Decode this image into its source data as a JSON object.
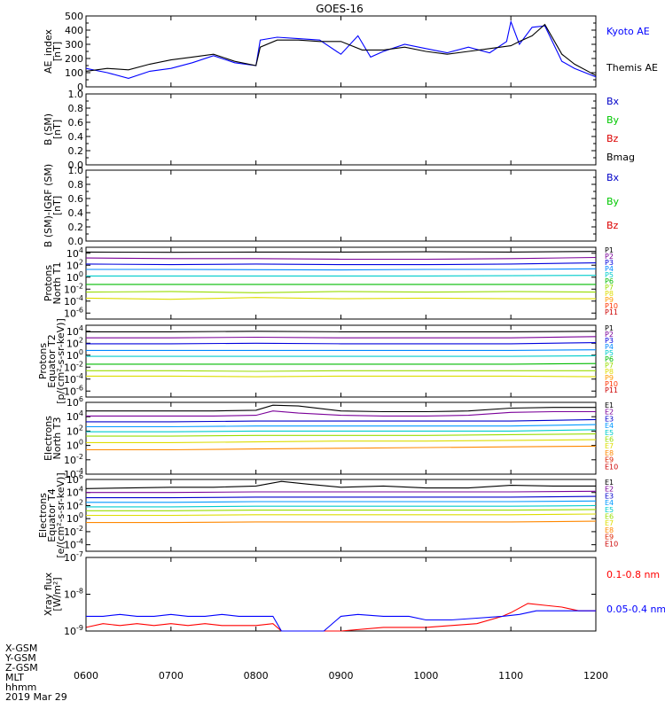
{
  "title": "GOES-16",
  "x_ticks": [
    "0600",
    "0700",
    "0800",
    "0900",
    "1000",
    "1100",
    "1200"
  ],
  "footer": {
    "labels": [
      "X-GSM",
      "Y-GSM",
      "Z-GSM",
      "MLT",
      "hhmm"
    ],
    "date": "2019 Mar 29"
  },
  "colors": {
    "kyoto": "#0000ff",
    "themis": "#000000",
    "bx": "#0000c8",
    "by": "#00c800",
    "bz": "#dc0000",
    "bmag": "#000000",
    "xray_long": "#ff0000",
    "xray_short": "#0000ff"
  },
  "chart_data": [
    {
      "type": "line",
      "panel": "ae",
      "ylabel": [
        "AE_index",
        "[nT]"
      ],
      "ylim": [
        0,
        500
      ],
      "yticks": [
        "0",
        "100",
        "200",
        "300",
        "400",
        "500"
      ],
      "x_range": [
        "0600",
        "1200"
      ],
      "series": [
        {
          "name": "Kyoto AE",
          "color": "#0000ff",
          "x": [
            6.0,
            6.25,
            6.5,
            6.75,
            7.0,
            7.25,
            7.5,
            7.75,
            8.0,
            8.05,
            8.25,
            8.5,
            8.75,
            9.0,
            9.2,
            9.35,
            9.5,
            9.75,
            10.0,
            10.25,
            10.5,
            10.75,
            10.95,
            11.0,
            11.1,
            11.25,
            11.4,
            11.6,
            11.75,
            12.0
          ],
          "values": [
            130,
            100,
            60,
            110,
            130,
            170,
            220,
            170,
            150,
            330,
            350,
            340,
            330,
            230,
            360,
            210,
            250,
            300,
            270,
            240,
            280,
            240,
            320,
            460,
            300,
            420,
            430,
            180,
            130,
            70
          ]
        },
        {
          "name": "Themis AE",
          "color": "#000000",
          "x": [
            6.0,
            6.25,
            6.5,
            6.75,
            7.0,
            7.25,
            7.5,
            7.75,
            8.0,
            8.05,
            8.25,
            8.5,
            8.75,
            9.0,
            9.25,
            9.5,
            9.75,
            10.0,
            10.25,
            10.5,
            10.75,
            11.0,
            11.1,
            11.25,
            11.4,
            11.6,
            11.75,
            12.0
          ],
          "values": [
            110,
            130,
            120,
            160,
            190,
            210,
            230,
            180,
            150,
            280,
            330,
            330,
            320,
            320,
            260,
            260,
            280,
            250,
            230,
            250,
            270,
            290,
            320,
            360,
            440,
            230,
            160,
            80
          ]
        }
      ]
    },
    {
      "type": "line",
      "panel": "b_sm",
      "ylabel": [
        "B (SM)",
        "[nT]"
      ],
      "ylim": [
        0,
        1
      ],
      "yticks": [
        "0.0",
        "0.2",
        "0.4",
        "0.6",
        "0.8",
        "1.0"
      ],
      "legend": [
        "Bx",
        "By",
        "Bz",
        "Bmag"
      ],
      "series": []
    },
    {
      "type": "line",
      "panel": "b_sm_igrf",
      "ylabel": [
        "B (SM)-IGRF (SM)",
        "[nT]"
      ],
      "ylim": [
        0,
        1
      ],
      "yticks": [
        "0.0",
        "0.2",
        "0.4",
        "0.6",
        "0.8",
        "1.0"
      ],
      "legend": [
        "Bx",
        "By",
        "Bz"
      ],
      "series": []
    },
    {
      "type": "line",
      "panel": "protons_t1",
      "ylabel": [
        "Protons",
        "North T1"
      ],
      "log": true,
      "ylim": [
        -7,
        5
      ],
      "yticks": [
        {
          "exp": "4",
          "v": 4
        },
        {
          "exp": "2",
          "v": 2
        },
        {
          "exp": "0",
          "v": 0
        },
        {
          "exp": "-2",
          "v": -2
        },
        {
          "exp": "-4",
          "v": -4
        },
        {
          "exp": "-6",
          "v": -6
        }
      ],
      "legend": [
        "P1",
        "P2",
        "P3",
        "P4",
        "P5",
        "P6",
        "P7",
        "P8",
        "P9",
        "P10",
        "P11"
      ],
      "series": [
        {
          "name": "P1",
          "values": [
            4.2,
            4.15,
            4.2,
            4.2,
            4.25,
            4.2,
            4.3
          ]
        },
        {
          "name": "P2",
          "values": [
            3.2,
            3.1,
            3.1,
            3.0,
            3.0,
            3.1,
            3.3
          ]
        },
        {
          "name": "P3",
          "values": [
            2.2,
            2.1,
            2.2,
            2.1,
            2.1,
            2.2,
            2.4
          ]
        },
        {
          "name": "P4",
          "values": [
            1.3,
            1.3,
            1.25,
            1.2,
            1.3,
            1.3,
            1.4
          ]
        },
        {
          "name": "P5",
          "values": [
            0.2,
            0.2,
            0.2,
            0.2,
            0.2,
            0.25,
            0.3
          ]
        },
        {
          "name": "P6",
          "values": [
            -1.2,
            -1.2,
            -1.2,
            -1.2,
            -1.2,
            -1.2,
            -1.2
          ]
        },
        {
          "name": "P7",
          "values": [
            -2.5,
            -2.4,
            -2.6,
            -2.4,
            -2.5,
            -2.4,
            -2.5
          ]
        },
        {
          "name": "P8",
          "values": [
            -3.5,
            -3.7,
            -3.4,
            -3.6,
            -3.5,
            -3.6,
            -3.6
          ]
        }
      ]
    },
    {
      "type": "line",
      "panel": "protons_t2",
      "ylabel": [
        "Protons",
        "Equator T2",
        "[p/(cm²-s-sr-keV)]"
      ],
      "log": true,
      "ylim": [
        -7,
        5
      ],
      "yticks": [
        {
          "exp": "4",
          "v": 4
        },
        {
          "exp": "2",
          "v": 2
        },
        {
          "exp": "0",
          "v": 0
        },
        {
          "exp": "-2",
          "v": -2
        },
        {
          "exp": "-4",
          "v": -4
        },
        {
          "exp": "-6",
          "v": -6
        }
      ],
      "legend": [
        "P1",
        "P2",
        "P3",
        "P4",
        "P5",
        "P6",
        "P7",
        "P8",
        "P9",
        "P10",
        "P11"
      ],
      "series": [
        {
          "name": "P1",
          "values": [
            3.9,
            3.9,
            4.0,
            3.9,
            3.9,
            3.9,
            4.0
          ]
        },
        {
          "name": "P2",
          "values": [
            2.9,
            2.9,
            3.0,
            2.9,
            2.9,
            2.9,
            3.1
          ]
        },
        {
          "name": "P3",
          "values": [
            1.9,
            1.9,
            2.0,
            1.9,
            1.9,
            1.9,
            2.1
          ]
        },
        {
          "name": "P4",
          "values": [
            0.8,
            0.8,
            0.8,
            0.8,
            0.8,
            0.8,
            0.9
          ]
        },
        {
          "name": "P5",
          "values": [
            -0.2,
            -0.2,
            -0.2,
            -0.2,
            -0.2,
            -0.2,
            -0.1
          ]
        },
        {
          "name": "P6",
          "values": [
            -1.5,
            -1.5,
            -1.5,
            -1.5,
            -1.5,
            -1.5,
            -1.4
          ]
        },
        {
          "name": "P7",
          "values": [
            -2.6,
            -2.6,
            -2.7,
            -2.6,
            -2.6,
            -2.6,
            -2.6
          ]
        },
        {
          "name": "P8",
          "values": [
            -3.5,
            -3.5,
            -3.6,
            -3.5,
            -3.5,
            -3.5,
            -3.6
          ]
        }
      ]
    },
    {
      "type": "line",
      "panel": "electrons_t3",
      "ylabel": [
        "Electrons",
        "North T3"
      ],
      "log": true,
      "ylim": [
        -4,
        6
      ],
      "yticks": [
        {
          "exp": "6",
          "v": 6
        },
        {
          "exp": "4",
          "v": 4
        },
        {
          "exp": "2",
          "v": 2
        },
        {
          "exp": "0",
          "v": 0
        },
        {
          "exp": "-2",
          "v": -2
        },
        {
          "exp": "-4",
          "v": -4
        }
      ],
      "legend": [
        "E1",
        "E2",
        "E3",
        "E4",
        "E5",
        "E6",
        "E7",
        "E8",
        "E9",
        "E10"
      ],
      "series": [
        {
          "name": "E1",
          "x": [
            6,
            6.5,
            7,
            7.5,
            8,
            8.2,
            8.5,
            9,
            9.5,
            10,
            10.5,
            11,
            11.5,
            12
          ],
          "values": [
            4.8,
            4.8,
            4.8,
            4.8,
            4.9,
            5.6,
            5.5,
            4.8,
            4.7,
            4.7,
            4.8,
            5.2,
            5.3,
            5.3
          ]
        },
        {
          "name": "E2",
          "x": [
            6,
            6.5,
            7,
            7.5,
            8,
            8.2,
            8.5,
            9,
            9.5,
            10,
            10.5,
            11,
            11.5,
            12
          ],
          "values": [
            4.1,
            4.1,
            4.1,
            4.1,
            4.2,
            4.8,
            4.5,
            4.2,
            4.1,
            4.1,
            4.2,
            4.6,
            4.7,
            4.7
          ]
        },
        {
          "name": "E3",
          "values": [
            3.3,
            3.3,
            3.4,
            3.4,
            3.4,
            3.4,
            3.6
          ]
        },
        {
          "name": "E4",
          "values": [
            2.6,
            2.6,
            2.7,
            2.7,
            2.7,
            2.7,
            2.9
          ]
        },
        {
          "name": "E5",
          "values": [
            1.9,
            1.9,
            2.0,
            2.0,
            2.0,
            2.0,
            2.2
          ]
        },
        {
          "name": "E6",
          "values": [
            1.3,
            1.3,
            1.4,
            1.4,
            1.4,
            1.5,
            1.6
          ]
        },
        {
          "name": "E7",
          "values": [
            0.4,
            0.4,
            0.5,
            0.6,
            0.6,
            0.7,
            0.8
          ]
        },
        {
          "name": "E8",
          "values": [
            -0.6,
            -0.6,
            -0.5,
            -0.4,
            -0.3,
            -0.2,
            -0.1
          ]
        }
      ]
    },
    {
      "type": "line",
      "panel": "electrons_t4",
      "ylabel": [
        "Electrons",
        "Equator T4",
        "[e/(cm²-s-sr-keV)]"
      ],
      "log": true,
      "ylim": [
        -5,
        6
      ],
      "yticks": [
        {
          "exp": "6",
          "v": 6
        },
        {
          "exp": "4",
          "v": 4
        },
        {
          "exp": "2",
          "v": 2
        },
        {
          "exp": "0",
          "v": 0
        },
        {
          "exp": "-2",
          "v": -2
        },
        {
          "exp": "-4",
          "v": -4
        }
      ],
      "legend": [
        "E1",
        "E2",
        "E3",
        "E4",
        "E5",
        "E6",
        "E7",
        "E8",
        "E9",
        "E10"
      ],
      "series": [
        {
          "name": "E1",
          "x": [
            6,
            6.5,
            7,
            7.5,
            8,
            8.3,
            8.6,
            9,
            9.5,
            10,
            10.5,
            11,
            11.5,
            12
          ],
          "values": [
            4.6,
            4.7,
            4.8,
            4.8,
            5.0,
            5.7,
            5.3,
            4.8,
            5.0,
            4.7,
            4.7,
            5.1,
            5.0,
            5.0
          ]
        },
        {
          "name": "E2",
          "values": [
            4.0,
            4.0,
            4.1,
            4.1,
            4.1,
            4.1,
            4.2
          ]
        },
        {
          "name": "E3",
          "values": [
            3.2,
            3.2,
            3.3,
            3.3,
            3.3,
            3.3,
            3.4
          ]
        },
        {
          "name": "E4",
          "values": [
            2.5,
            2.5,
            2.6,
            2.6,
            2.6,
            2.6,
            2.7
          ]
        },
        {
          "name": "E5",
          "values": [
            1.8,
            1.8,
            1.9,
            1.9,
            1.9,
            1.9,
            2.0
          ]
        },
        {
          "name": "E6",
          "values": [
            1.2,
            1.2,
            1.3,
            1.3,
            1.3,
            1.3,
            1.4
          ]
        },
        {
          "name": "E7",
          "values": [
            0.5,
            0.5,
            0.6,
            0.6,
            0.6,
            0.6,
            0.7
          ]
        },
        {
          "name": "E8",
          "values": [
            -0.6,
            -0.6,
            -0.5,
            -0.5,
            -0.5,
            -0.5,
            -0.4
          ]
        }
      ]
    },
    {
      "type": "line",
      "panel": "xray",
      "ylabel": [
        "Xray flux",
        "[W/m²]"
      ],
      "log": true,
      "ylim": [
        -9,
        -7
      ],
      "yticks": [
        {
          "exp": "-7",
          "v": -7
        },
        {
          "exp": "-8",
          "v": -8
        },
        {
          "exp": "-9",
          "v": -9
        }
      ],
      "series": [
        {
          "name": "0.1-0.8 nm",
          "color": "#ff0000",
          "x": [
            6.0,
            6.2,
            6.4,
            6.6,
            6.8,
            7.0,
            7.2,
            7.4,
            7.6,
            7.8,
            8.0,
            8.2,
            8.3,
            9.0,
            9.5,
            10.0,
            10.3,
            10.6,
            10.9,
            11.0,
            11.2,
            11.4,
            11.6,
            11.8,
            12.0
          ],
          "values": [
            -8.9,
            -8.8,
            -8.85,
            -8.8,
            -8.85,
            -8.8,
            -8.85,
            -8.8,
            -8.85,
            -8.85,
            -8.85,
            -8.8,
            -9.0,
            -9.0,
            -8.9,
            -8.9,
            -8.85,
            -8.8,
            -8.6,
            -8.5,
            -8.25,
            -8.3,
            -8.35,
            -8.45,
            -8.45
          ]
        },
        {
          "name": "0.05-0.4 nm",
          "color": "#0000ff",
          "x": [
            6.0,
            6.2,
            6.4,
            6.6,
            6.8,
            7.0,
            7.2,
            7.4,
            7.6,
            7.8,
            8.0,
            8.2,
            8.3,
            8.8,
            9.0,
            9.2,
            9.5,
            9.8,
            10.0,
            10.3,
            10.6,
            10.9,
            11.1,
            11.3,
            11.5,
            11.7,
            12.0
          ],
          "values": [
            -8.6,
            -8.6,
            -8.55,
            -8.6,
            -8.6,
            -8.55,
            -8.6,
            -8.6,
            -8.55,
            -8.6,
            -8.6,
            -8.6,
            -9.0,
            -9.0,
            -8.6,
            -8.55,
            -8.6,
            -8.6,
            -8.7,
            -8.7,
            -8.65,
            -8.6,
            -8.55,
            -8.45,
            -8.45,
            -8.45,
            -8.45
          ]
        }
      ]
    }
  ],
  "legends": {
    "ae": [
      "Kyoto AE",
      "Themis AE"
    ],
    "xray": [
      "0.1-0.8 nm",
      "0.05-0.4 nm"
    ]
  }
}
